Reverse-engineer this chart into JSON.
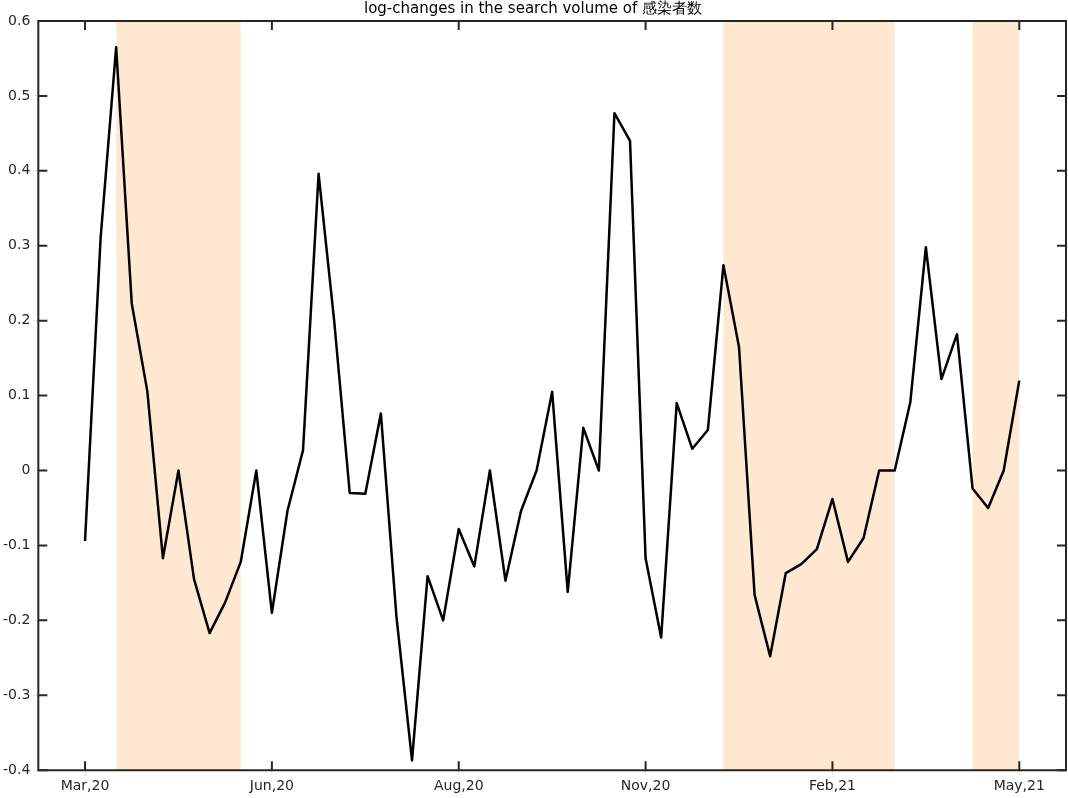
{
  "chart_data": {
    "type": "line",
    "title": "log-changes in the search volume of 感染者数",
    "x": [
      "2020-03-15",
      "2020-03-22",
      "2020-03-29",
      "2020-04-05",
      "2020-04-12",
      "2020-04-19",
      "2020-04-26",
      "2020-05-03",
      "2020-05-10",
      "2020-05-17",
      "2020-05-24",
      "2020-05-31",
      "2020-06-07",
      "2020-06-14",
      "2020-06-21",
      "2020-06-28",
      "2020-07-05",
      "2020-07-12",
      "2020-07-19",
      "2020-07-26",
      "2020-08-02",
      "2020-08-09",
      "2020-08-16",
      "2020-08-23",
      "2020-08-30",
      "2020-09-06",
      "2020-09-13",
      "2020-09-20",
      "2020-09-27",
      "2020-10-04",
      "2020-10-11",
      "2020-10-18",
      "2020-10-25",
      "2020-11-01",
      "2020-11-08",
      "2020-11-15",
      "2020-11-22",
      "2020-11-29",
      "2020-12-06",
      "2020-12-13",
      "2020-12-20",
      "2020-12-27",
      "2021-01-03",
      "2021-01-10",
      "2021-01-17",
      "2021-01-24",
      "2021-01-31",
      "2021-02-07",
      "2021-02-14",
      "2021-02-21",
      "2021-02-28",
      "2021-03-07",
      "2021-03-14",
      "2021-03-21",
      "2021-03-28",
      "2021-04-04",
      "2021-04-11",
      "2021-04-18",
      "2021-04-25",
      "2021-05-02",
      "2021-05-09"
    ],
    "series": [
      {
        "color": "#000000",
        "values": [
          -0.094,
          0.31,
          0.565,
          0.223,
          0.106,
          -0.117,
          0,
          -0.145,
          -0.217,
          -0.176,
          -0.122,
          0,
          -0.19,
          -0.054,
          0.027,
          0.396,
          0.2,
          -0.03,
          -0.031,
          0.076,
          -0.195,
          -0.387,
          -0.141,
          -0.2,
          -0.078,
          -0.128,
          0,
          -0.147,
          -0.054,
          0,
          0.105,
          -0.162,
          0.057,
          0,
          0.477,
          0.44,
          -0.117,
          -0.223,
          0.09,
          0.029,
          0.054,
          0.274,
          0.165,
          -0.166,
          -0.248,
          -0.137,
          -0.125,
          -0.105,
          -0.038,
          -0.122,
          -0.09,
          0,
          0,
          0.091,
          0.298,
          0.122,
          0.182,
          -0.024,
          -0.05,
          0,
          0.12
        ]
      }
    ],
    "xlim": [
      "2020-02-23",
      "2021-05-30"
    ],
    "xticks": [
      {
        "value": "2020-03-15",
        "label": "Mar,20"
      },
      {
        "value": "2020-06-07",
        "label": "Jun,20"
      },
      {
        "value": "2020-08-30",
        "label": "Aug,20"
      },
      {
        "value": "2020-11-22",
        "label": "Nov,20"
      },
      {
        "value": "2021-02-14",
        "label": "Feb,21"
      },
      {
        "value": "2021-05-09",
        "label": "May,21"
      }
    ],
    "ylim": [
      -0.4,
      0.6
    ],
    "yticks": [
      -0.4,
      -0.3,
      -0.2,
      -0.1,
      0,
      0.1,
      0.2,
      0.3,
      0.4,
      0.5,
      0.6
    ],
    "bands": [
      {
        "axis": "x",
        "from": "2020-03-29",
        "to": "2020-05-24",
        "color": "#ffe8d1"
      },
      {
        "axis": "x",
        "from": "2020-12-27",
        "to": "2021-03-14",
        "color": "#ffe8d1"
      },
      {
        "axis": "x",
        "from": "2021-04-18",
        "to": "2021-05-09",
        "color": "#ffe8d1"
      }
    ],
    "marker": "none"
  }
}
